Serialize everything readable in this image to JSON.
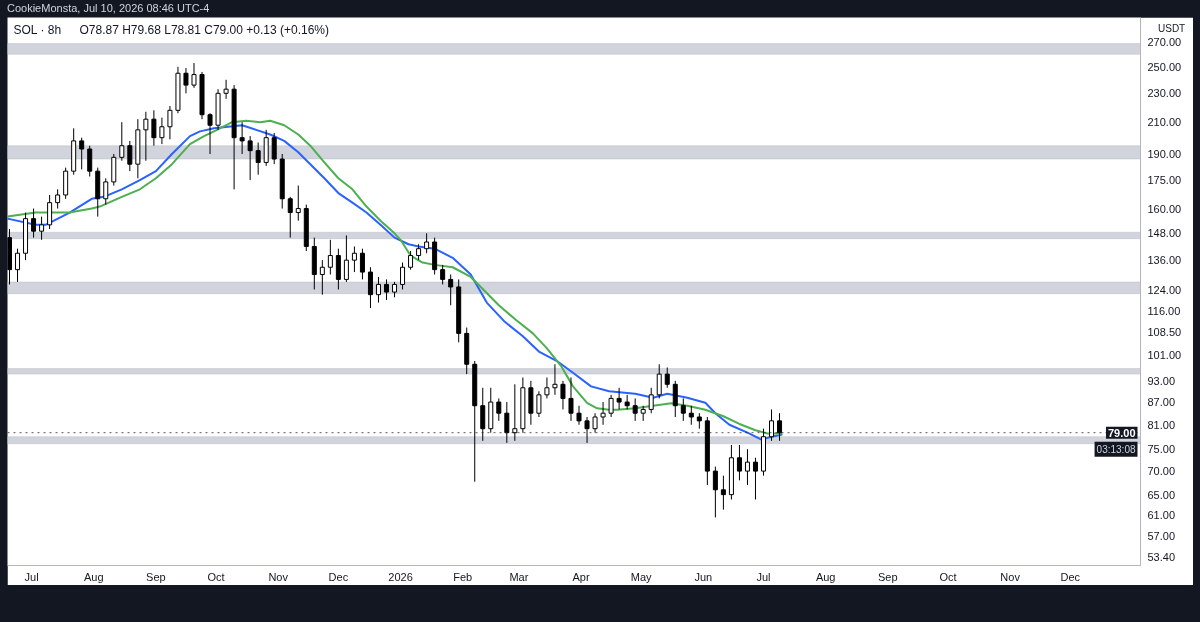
{
  "chart_data": {
    "type": "candlestick",
    "title": "SOL · 8h",
    "subtitle": "O78.87 H79.68 L78.81 C79.00 +0.13 (+0.16%)",
    "ylabel": "USDT",
    "annotations": [
      "CookieMonsta, Jul 10, 2026 08:46 UTC-4",
      "03:13:08"
    ],
    "log": true,
    "xlim": [
      "2025-06-19",
      "2027-01-05"
    ],
    "xticks": [
      {
        "value": "2025-07-01",
        "label": "Jul"
      },
      {
        "value": "2025-08-01",
        "label": "Aug"
      },
      {
        "value": "2025-09-01",
        "label": "Sep"
      },
      {
        "value": "2025-10-01",
        "label": "Oct"
      },
      {
        "value": "2025-11-01",
        "label": "Nov"
      },
      {
        "value": "2025-12-01",
        "label": "Dec"
      },
      {
        "value": "2026-01-01",
        "label": "2026"
      },
      {
        "value": "2026-02-01",
        "label": "Feb"
      },
      {
        "value": "2026-03-01",
        "label": "Mar"
      },
      {
        "value": "2026-04-01",
        "label": "Apr"
      },
      {
        "value": "2026-05-01",
        "label": "May"
      },
      {
        "value": "2026-06-01",
        "label": "Jun"
      },
      {
        "value": "2026-07-01",
        "label": "Jul"
      },
      {
        "value": "2026-08-01",
        "label": "Aug"
      },
      {
        "value": "2026-09-01",
        "label": "Sep"
      },
      {
        "value": "2026-10-01",
        "label": "Oct"
      },
      {
        "value": "2026-11-01",
        "label": "Nov"
      },
      {
        "value": "2026-12-01",
        "label": "Dec"
      }
    ],
    "ylim": [
      52,
      292
    ],
    "yticks": [
      {
        "value": 270,
        "label": "270.00"
      },
      {
        "value": 250,
        "label": "250.00"
      },
      {
        "value": 230,
        "label": "230.00"
      },
      {
        "value": 210,
        "label": "210.00"
      },
      {
        "value": 190,
        "label": "190.00"
      },
      {
        "value": 175,
        "label": "175.00"
      },
      {
        "value": 160,
        "label": "160.00"
      },
      {
        "value": 148,
        "label": "148.00"
      },
      {
        "value": 136,
        "label": "136.00"
      },
      {
        "value": 124,
        "label": "124.00"
      },
      {
        "value": 116,
        "label": "116.00"
      },
      {
        "value": 108.5,
        "label": "108.50"
      },
      {
        "value": 101,
        "label": "101.00"
      },
      {
        "value": 93,
        "label": "93.00"
      },
      {
        "value": 87,
        "label": "87.00"
      },
      {
        "value": 81,
        "label": "81.00"
      },
      {
        "value": 75,
        "label": "75.00"
      },
      {
        "value": 70,
        "label": "70.00"
      },
      {
        "value": 65,
        "label": "65.00"
      },
      {
        "value": 61,
        "label": "61.00"
      },
      {
        "value": 57,
        "label": "57.00"
      },
      {
        "value": 53.4,
        "label": "53.40"
      }
    ],
    "bands": [
      {
        "axis": "y",
        "from": 260,
        "to": 269,
        "color": "#d1d4dc"
      },
      {
        "axis": "y",
        "from": 187,
        "to": 195,
        "color": "#d1d4dc"
      },
      {
        "axis": "y",
        "from": 145.5,
        "to": 148.5,
        "color": "#d1d4dc"
      },
      {
        "axis": "y",
        "from": 122.4,
        "to": 127,
        "color": "#d1d4dc"
      },
      {
        "axis": "y",
        "from": 95,
        "to": 96.7,
        "color": "#d1d4dc"
      },
      {
        "axis": "y",
        "from": 76.3,
        "to": 78,
        "color": "#d1d4dc"
      }
    ],
    "ref_lines": [
      {
        "axis": "y",
        "value": 79,
        "label": "79.00",
        "color": "#131722",
        "line_style": "dotted"
      }
    ],
    "series": [
      {
        "color": "#000000",
        "x": [
          "2025-06-20",
          "2025-06-24",
          "2025-06-28",
          "2025-07-02",
          "2025-07-06",
          "2025-07-10",
          "2025-07-14",
          "2025-07-18",
          "2025-07-22",
          "2025-07-26",
          "2025-07-30",
          "2025-08-03",
          "2025-08-07",
          "2025-08-11",
          "2025-08-15",
          "2025-08-19",
          "2025-08-23",
          "2025-08-27",
          "2025-08-31",
          "2025-09-04",
          "2025-09-08",
          "2025-09-12",
          "2025-09-16",
          "2025-09-20",
          "2025-09-24",
          "2025-09-28",
          "2025-10-02",
          "2025-10-06",
          "2025-10-10",
          "2025-10-14",
          "2025-10-18",
          "2025-10-22",
          "2025-10-26",
          "2025-10-30",
          "2025-11-03",
          "2025-11-07",
          "2025-11-11",
          "2025-11-15",
          "2025-11-19",
          "2025-11-23",
          "2025-11-27",
          "2025-12-01",
          "2025-12-05",
          "2025-12-09",
          "2025-12-13",
          "2025-12-17",
          "2025-12-21",
          "2025-12-25",
          "2025-12-29",
          "2026-01-02",
          "2026-01-06",
          "2026-01-10",
          "2026-01-14",
          "2026-01-18",
          "2026-01-22",
          "2026-01-26",
          "2026-01-30",
          "2026-02-03",
          "2026-02-07",
          "2026-02-11",
          "2026-02-15",
          "2026-02-19",
          "2026-02-23",
          "2026-02-27",
          "2026-03-03",
          "2026-03-07",
          "2026-03-11",
          "2026-03-15",
          "2026-03-19",
          "2026-03-23",
          "2026-03-27",
          "2026-03-31",
          "2026-04-04",
          "2026-04-08",
          "2026-04-12",
          "2026-04-16",
          "2026-04-20",
          "2026-04-24",
          "2026-04-28",
          "2026-05-02",
          "2026-05-06",
          "2026-05-10",
          "2026-05-14",
          "2026-05-18",
          "2026-05-22",
          "2026-05-26",
          "2026-05-30",
          "2026-06-03",
          "2026-06-07",
          "2026-06-11",
          "2026-06-15",
          "2026-06-19",
          "2026-06-23",
          "2026-06-27",
          "2026-07-01",
          "2026-07-05",
          "2026-07-09"
        ],
        "ohlc": [
          [
            146,
            150,
            126,
            132
          ],
          [
            132,
            141,
            127,
            139
          ],
          [
            139,
            158,
            136,
            155
          ],
          [
            155,
            160,
            146,
            149
          ],
          [
            149,
            156,
            145,
            152
          ],
          [
            152,
            167,
            150,
            163
          ],
          [
            163,
            170,
            160,
            167
          ],
          [
            167,
            182,
            165,
            180
          ],
          [
            180,
            206,
            178,
            198
          ],
          [
            198,
            200,
            181,
            193
          ],
          [
            193,
            195,
            177,
            180
          ],
          [
            180,
            182,
            156,
            165
          ],
          [
            165,
            176,
            162,
            174
          ],
          [
            174,
            190,
            172,
            188
          ],
          [
            188,
            210,
            186,
            195
          ],
          [
            195,
            198,
            180,
            184
          ],
          [
            184,
            212,
            176,
            205
          ],
          [
            205,
            217,
            186,
            212
          ],
          [
            212,
            218,
            195,
            200
          ],
          [
            200,
            213,
            196,
            207
          ],
          [
            207,
            221,
            199,
            218
          ],
          [
            218,
            250,
            216,
            245
          ],
          [
            245,
            249,
            230,
            236
          ],
          [
            236,
            253,
            234,
            244
          ],
          [
            244,
            246,
            212,
            215
          ],
          [
            215,
            216,
            190,
            208
          ],
          [
            208,
            233,
            205,
            230
          ],
          [
            230,
            240,
            226,
            233
          ],
          [
            233,
            236,
            170,
            200
          ],
          [
            200,
            210,
            190,
            198
          ],
          [
            198,
            201,
            175,
            192
          ],
          [
            192,
            197,
            178,
            185
          ],
          [
            185,
            205,
            183,
            200
          ],
          [
            200,
            203,
            184,
            187
          ],
          [
            187,
            190,
            160,
            165
          ],
          [
            165,
            166,
            146,
            158
          ],
          [
            158,
            172,
            154,
            160
          ],
          [
            160,
            162,
            140,
            142
          ],
          [
            142,
            146,
            124,
            130
          ],
          [
            130,
            136,
            122,
            133
          ],
          [
            133,
            145,
            130,
            138
          ],
          [
            138,
            141,
            124,
            128
          ],
          [
            128,
            147,
            127,
            136
          ],
          [
            136,
            142,
            131,
            139
          ],
          [
            139,
            141,
            128,
            131
          ],
          [
            131,
            133,
            117,
            122
          ],
          [
            122,
            129,
            119,
            126
          ],
          [
            126,
            128,
            120,
            123
          ],
          [
            123,
            127,
            121,
            126
          ],
          [
            126,
            135,
            124,
            133
          ],
          [
            133,
            140,
            132,
            138
          ],
          [
            138,
            143,
            136,
            141
          ],
          [
            141,
            148,
            139,
            144
          ],
          [
            144,
            146,
            130,
            132
          ],
          [
            132,
            134,
            126,
            128
          ],
          [
            128,
            130,
            118,
            125
          ],
          [
            125,
            128,
            105,
            108
          ],
          [
            108,
            110,
            95,
            98
          ],
          [
            98,
            99,
            67.7,
            86
          ],
          [
            86,
            91,
            77,
            80
          ],
          [
            80,
            91,
            79,
            87
          ],
          [
            87,
            88,
            82,
            84
          ],
          [
            84,
            87,
            76.5,
            79
          ],
          [
            79,
            92,
            77,
            80
          ],
          [
            80,
            94,
            79,
            91
          ],
          [
            91,
            93,
            81,
            84
          ],
          [
            84,
            90,
            83,
            89
          ],
          [
            89,
            94,
            88,
            91
          ],
          [
            91,
            98,
            89,
            92
          ],
          [
            92,
            93,
            85,
            88
          ],
          [
            88,
            94,
            82,
            84
          ],
          [
            84,
            86,
            81,
            82
          ],
          [
            82,
            83,
            76.5,
            80
          ],
          [
            80,
            84,
            79,
            83
          ],
          [
            83,
            87,
            81,
            84
          ],
          [
            84,
            89,
            83,
            88
          ],
          [
            88,
            91,
            85,
            87
          ],
          [
            87,
            89,
            85,
            86
          ],
          [
            86,
            88,
            82,
            84
          ],
          [
            84,
            86,
            82,
            85
          ],
          [
            85,
            91,
            84,
            89
          ],
          [
            89,
            98,
            88,
            95
          ],
          [
            95,
            97,
            91,
            92
          ],
          [
            92,
            93,
            83,
            86
          ],
          [
            86,
            88,
            82,
            84
          ],
          [
            84,
            86,
            81,
            83
          ],
          [
            83,
            84,
            80,
            82
          ],
          [
            82,
            83,
            67,
            70
          ],
          [
            70,
            71,
            60.5,
            66
          ],
          [
            66,
            69,
            62,
            65
          ],
          [
            65,
            76,
            64,
            73
          ],
          [
            73,
            76,
            68,
            70
          ],
          [
            70,
            75,
            67,
            72
          ],
          [
            72,
            73,
            64,
            70
          ],
          [
            70,
            80,
            69,
            78
          ],
          [
            78,
            85,
            77,
            82
          ],
          [
            82,
            84,
            77,
            79
          ]
        ]
      },
      {
        "type": "line",
        "color": "#2962ff",
        "x": [
          "2025-06-19",
          "2025-07-03",
          "2025-07-08",
          "2025-07-20",
          "2025-07-31",
          "2025-08-06",
          "2025-08-15",
          "2025-08-24",
          "2025-09-01",
          "2025-09-09",
          "2025-09-18",
          "2025-09-23",
          "2025-09-30",
          "2025-10-14",
          "2025-10-21",
          "2025-10-28",
          "2025-11-04",
          "2025-11-11",
          "2025-11-17",
          "2025-11-24",
          "2025-12-01",
          "2025-12-08",
          "2025-12-15",
          "2025-12-22",
          "2025-12-29",
          "2026-01-05",
          "2026-01-10",
          "2026-01-18",
          "2026-01-27",
          "2026-02-05",
          "2026-02-13",
          "2026-02-22",
          "2026-03-03",
          "2026-03-11",
          "2026-03-20",
          "2026-03-28",
          "2026-04-06",
          "2026-04-15",
          "2026-04-28",
          "2026-05-07",
          "2026-05-14",
          "2026-05-24",
          "2026-06-02",
          "2026-06-07",
          "2026-06-14",
          "2026-06-23",
          "2026-06-30",
          "2026-07-05",
          "2026-07-10"
        ],
        "values": [
          155,
          152,
          152,
          158,
          165,
          166,
          170,
          175,
          180,
          190,
          201,
          204,
          206,
          208,
          205,
          202,
          198,
          191,
          184,
          176,
          168,
          163,
          158,
          152,
          146,
          143,
          142,
          141,
          137,
          130,
          119,
          112,
          107,
          102,
          99,
          95.4,
          91.4,
          90,
          89.3,
          88.2,
          89.3,
          88.2,
          86.8,
          84,
          81,
          79,
          77.3,
          78,
          78.5
        ]
      },
      {
        "type": "line",
        "color": "#4caf50",
        "x": [
          "2025-06-19",
          "2025-07-03",
          "2025-07-20",
          "2025-07-31",
          "2025-08-04",
          "2025-08-15",
          "2025-08-24",
          "2025-09-01",
          "2025-09-09",
          "2025-09-18",
          "2025-09-25",
          "2025-09-30",
          "2025-10-09",
          "2025-10-16",
          "2025-10-23",
          "2025-10-28",
          "2025-11-04",
          "2025-11-11",
          "2025-11-17",
          "2025-11-24",
          "2025-12-01",
          "2025-12-08",
          "2025-12-15",
          "2025-12-22",
          "2025-12-29",
          "2026-01-01",
          "2026-01-06",
          "2026-01-12",
          "2026-01-18",
          "2026-01-27",
          "2026-02-05",
          "2026-02-10",
          "2026-02-19",
          "2026-02-27",
          "2026-03-08",
          "2026-03-15",
          "2026-03-22",
          "2026-03-28",
          "2026-04-04",
          "2026-04-09",
          "2026-04-15",
          "2026-04-19",
          "2026-04-28",
          "2026-05-07",
          "2026-05-16",
          "2026-05-24",
          "2026-06-02",
          "2026-06-11",
          "2026-06-19",
          "2026-06-27",
          "2026-07-03",
          "2026-07-10"
        ],
        "values": [
          156,
          158,
          158,
          160,
          161,
          166,
          170,
          176,
          184,
          196,
          201,
          204,
          210,
          211,
          210,
          211,
          208,
          202,
          195,
          185,
          176,
          170,
          161,
          154,
          148,
          145,
          138,
          135,
          134,
          133,
          129,
          125,
          118,
          113,
          108,
          103,
          97.5,
          91.4,
          86.8,
          85.3,
          84.9,
          84.9,
          85.3,
          86,
          86.7,
          86,
          84.9,
          83.2,
          81.2,
          79.6,
          78.8,
          78.8
        ]
      }
    ]
  }
}
